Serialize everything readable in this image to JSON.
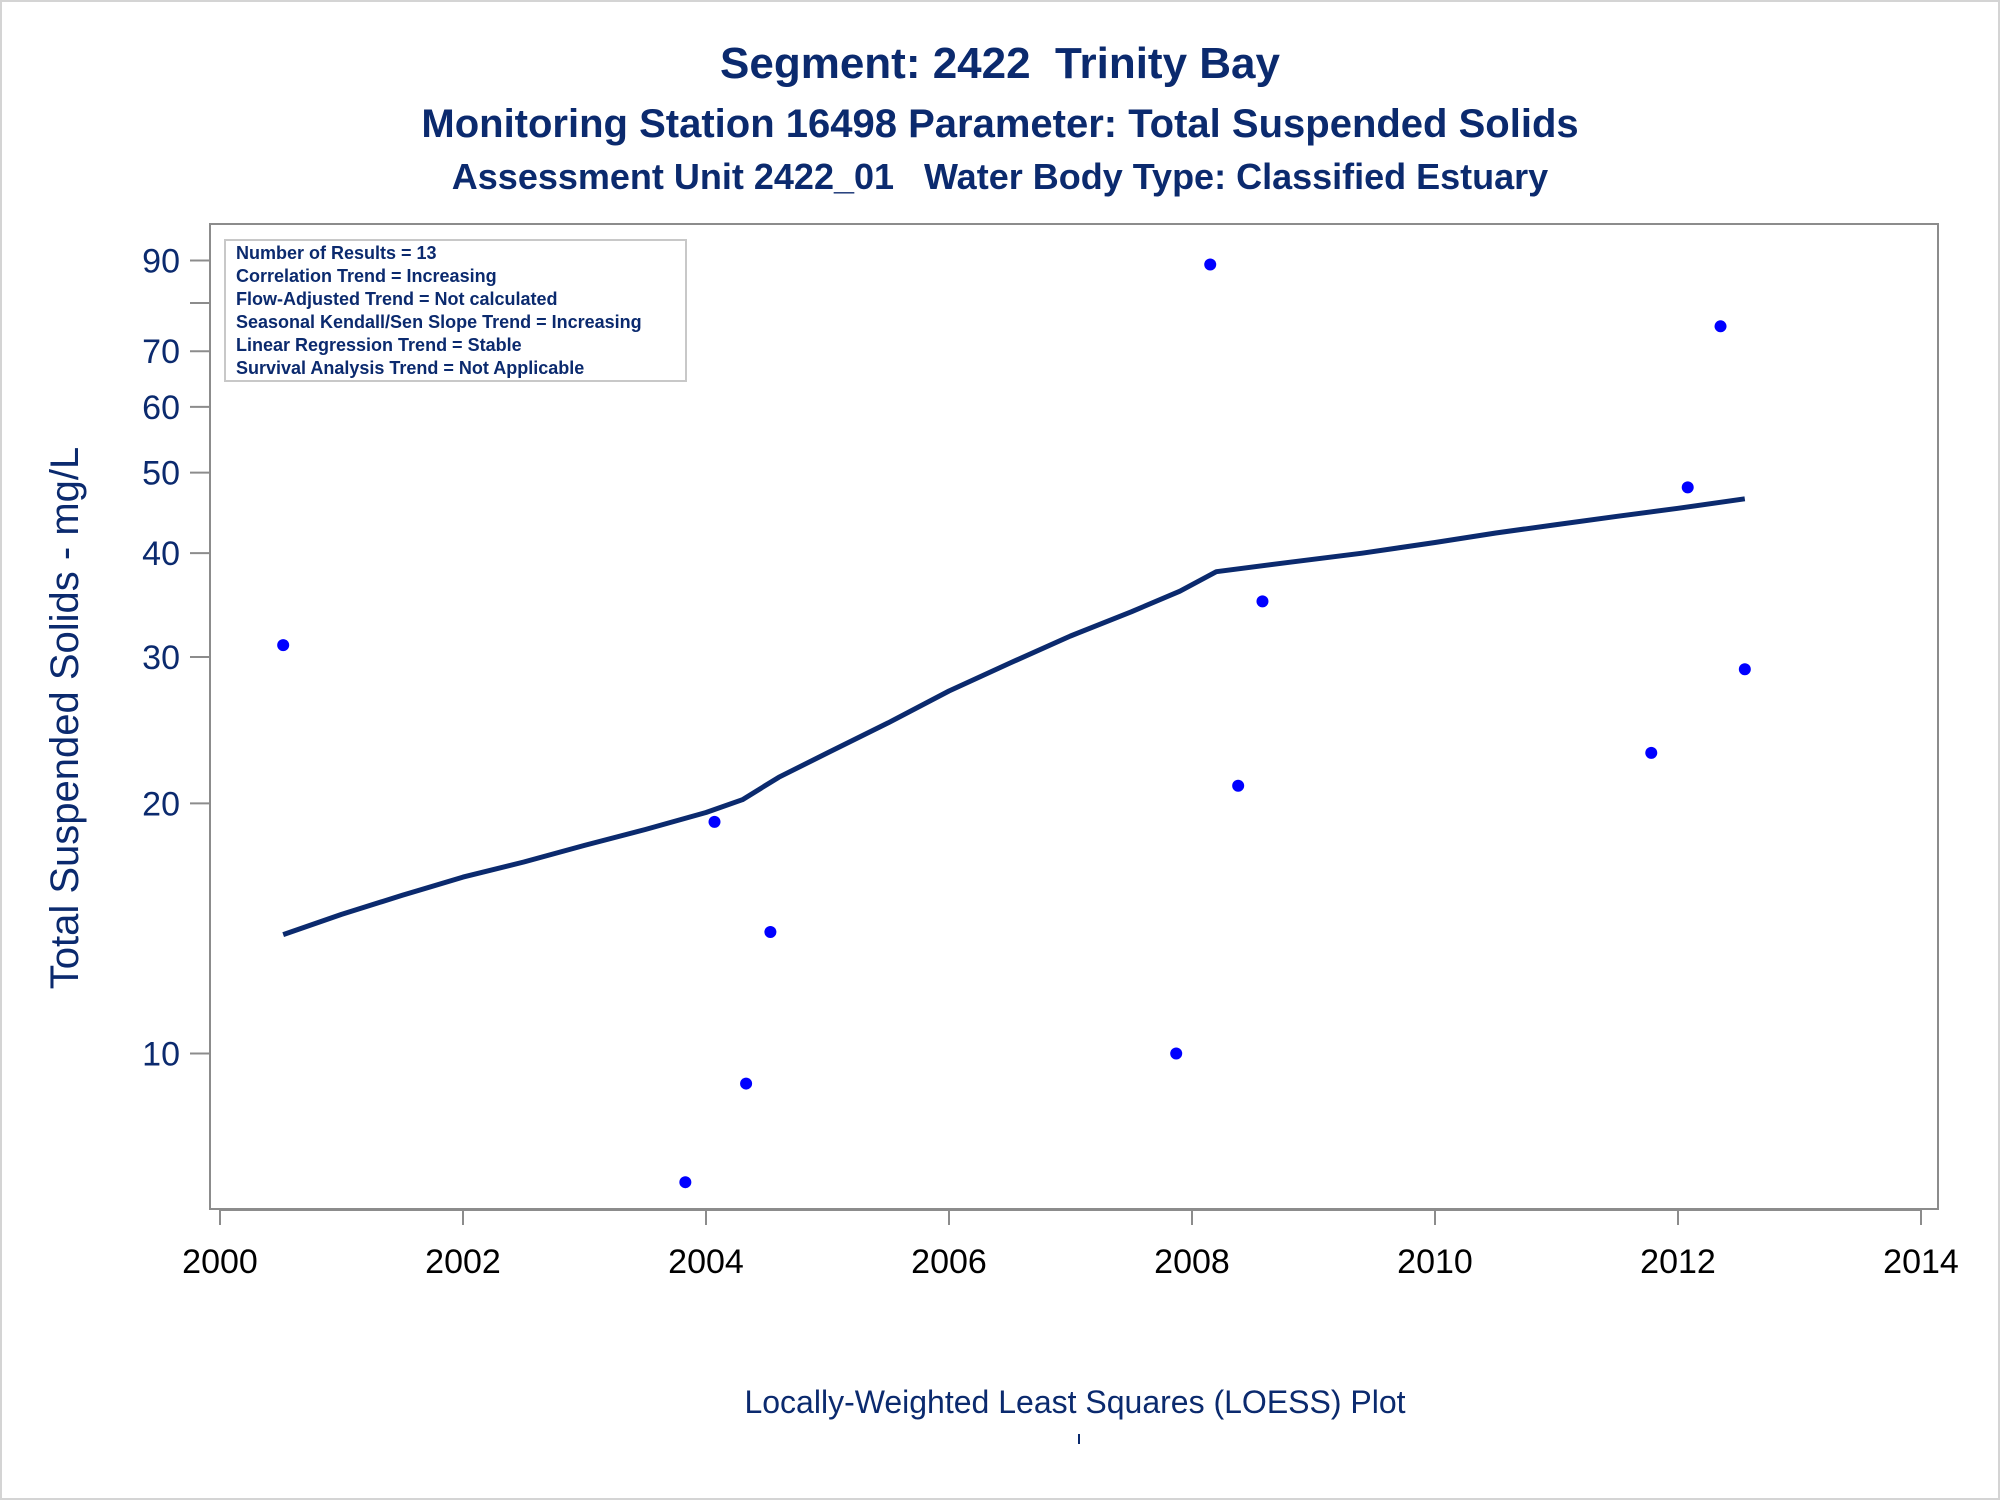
{
  "titles": {
    "line1": "Segment: 2422  Trinity Bay",
    "line2": "Monitoring Station 16498 Parameter: Total Suspended Solids",
    "line3": "Assessment Unit 2422_01   Water Body Type: Classified Estuary"
  },
  "info_box": [
    "Number of Results = 13",
    "Correlation Trend = Increasing",
    "Flow-Adjusted Trend = Not calculated",
    "Seasonal Kendall/Sen Slope Trend = Increasing",
    "Linear Regression Trend = Stable",
    "Survival Analysis Trend = Not Applicable"
  ],
  "footnote": "Locally-Weighted Least Squares (LOESS) Plot",
  "colors": {
    "text": "#0b2a6e",
    "points": "#0000ff",
    "line": "#0b2a6e",
    "axis": "#8c8c8c"
  },
  "chart_data": {
    "type": "scatter",
    "title": "Segment: 2422  Trinity Bay",
    "xlabel": "",
    "ylabel": "Total Suspended Solids - mg/L",
    "yscale": "log",
    "xlim": [
      2000,
      2014
    ],
    "ylim": [
      6.7,
      95
    ],
    "x_ticks": [
      2000,
      2002,
      2004,
      2006,
      2008,
      2010,
      2012,
      2014
    ],
    "y_ticks": [
      10,
      20,
      30,
      40,
      50,
      60,
      70,
      80,
      90
    ],
    "y_tick_labels": [
      "10",
      "20",
      "30",
      "40",
      "50",
      "60",
      "70",
      "",
      "90"
    ],
    "grid": false,
    "series": [
      {
        "type": "scatter",
        "points": [
          {
            "x": 2000.52,
            "y": 31
          },
          {
            "x": 2003.83,
            "y": 7
          },
          {
            "x": 2004.07,
            "y": 19
          },
          {
            "x": 2004.33,
            "y": 9.2
          },
          {
            "x": 2004.53,
            "y": 14
          },
          {
            "x": 2007.87,
            "y": 10
          },
          {
            "x": 2008.15,
            "y": 89
          },
          {
            "x": 2008.38,
            "y": 21
          },
          {
            "x": 2008.58,
            "y": 35
          },
          {
            "x": 2011.78,
            "y": 23
          },
          {
            "x": 2012.08,
            "y": 48
          },
          {
            "x": 2012.35,
            "y": 75
          },
          {
            "x": 2012.55,
            "y": 29
          }
        ]
      },
      {
        "type": "line",
        "points": [
          {
            "x": 2000.52,
            "y": 13.9
          },
          {
            "x": 2001.0,
            "y": 14.7
          },
          {
            "x": 2001.5,
            "y": 15.5
          },
          {
            "x": 2002.0,
            "y": 16.3
          },
          {
            "x": 2002.5,
            "y": 17.0
          },
          {
            "x": 2003.0,
            "y": 17.8
          },
          {
            "x": 2003.5,
            "y": 18.6
          },
          {
            "x": 2004.0,
            "y": 19.5
          },
          {
            "x": 2004.3,
            "y": 20.2
          },
          {
            "x": 2004.6,
            "y": 21.5
          },
          {
            "x": 2005.0,
            "y": 23.0
          },
          {
            "x": 2005.5,
            "y": 25.0
          },
          {
            "x": 2006.0,
            "y": 27.3
          },
          {
            "x": 2006.5,
            "y": 29.5
          },
          {
            "x": 2007.0,
            "y": 31.8
          },
          {
            "x": 2007.5,
            "y": 34.0
          },
          {
            "x": 2007.9,
            "y": 36.0
          },
          {
            "x": 2008.2,
            "y": 38.0
          },
          {
            "x": 2008.8,
            "y": 39.0
          },
          {
            "x": 2009.4,
            "y": 40.0
          },
          {
            "x": 2010.0,
            "y": 41.2
          },
          {
            "x": 2010.5,
            "y": 42.3
          },
          {
            "x": 2011.0,
            "y": 43.3
          },
          {
            "x": 2011.5,
            "y": 44.3
          },
          {
            "x": 2012.0,
            "y": 45.3
          },
          {
            "x": 2012.55,
            "y": 46.5
          }
        ]
      }
    ]
  }
}
